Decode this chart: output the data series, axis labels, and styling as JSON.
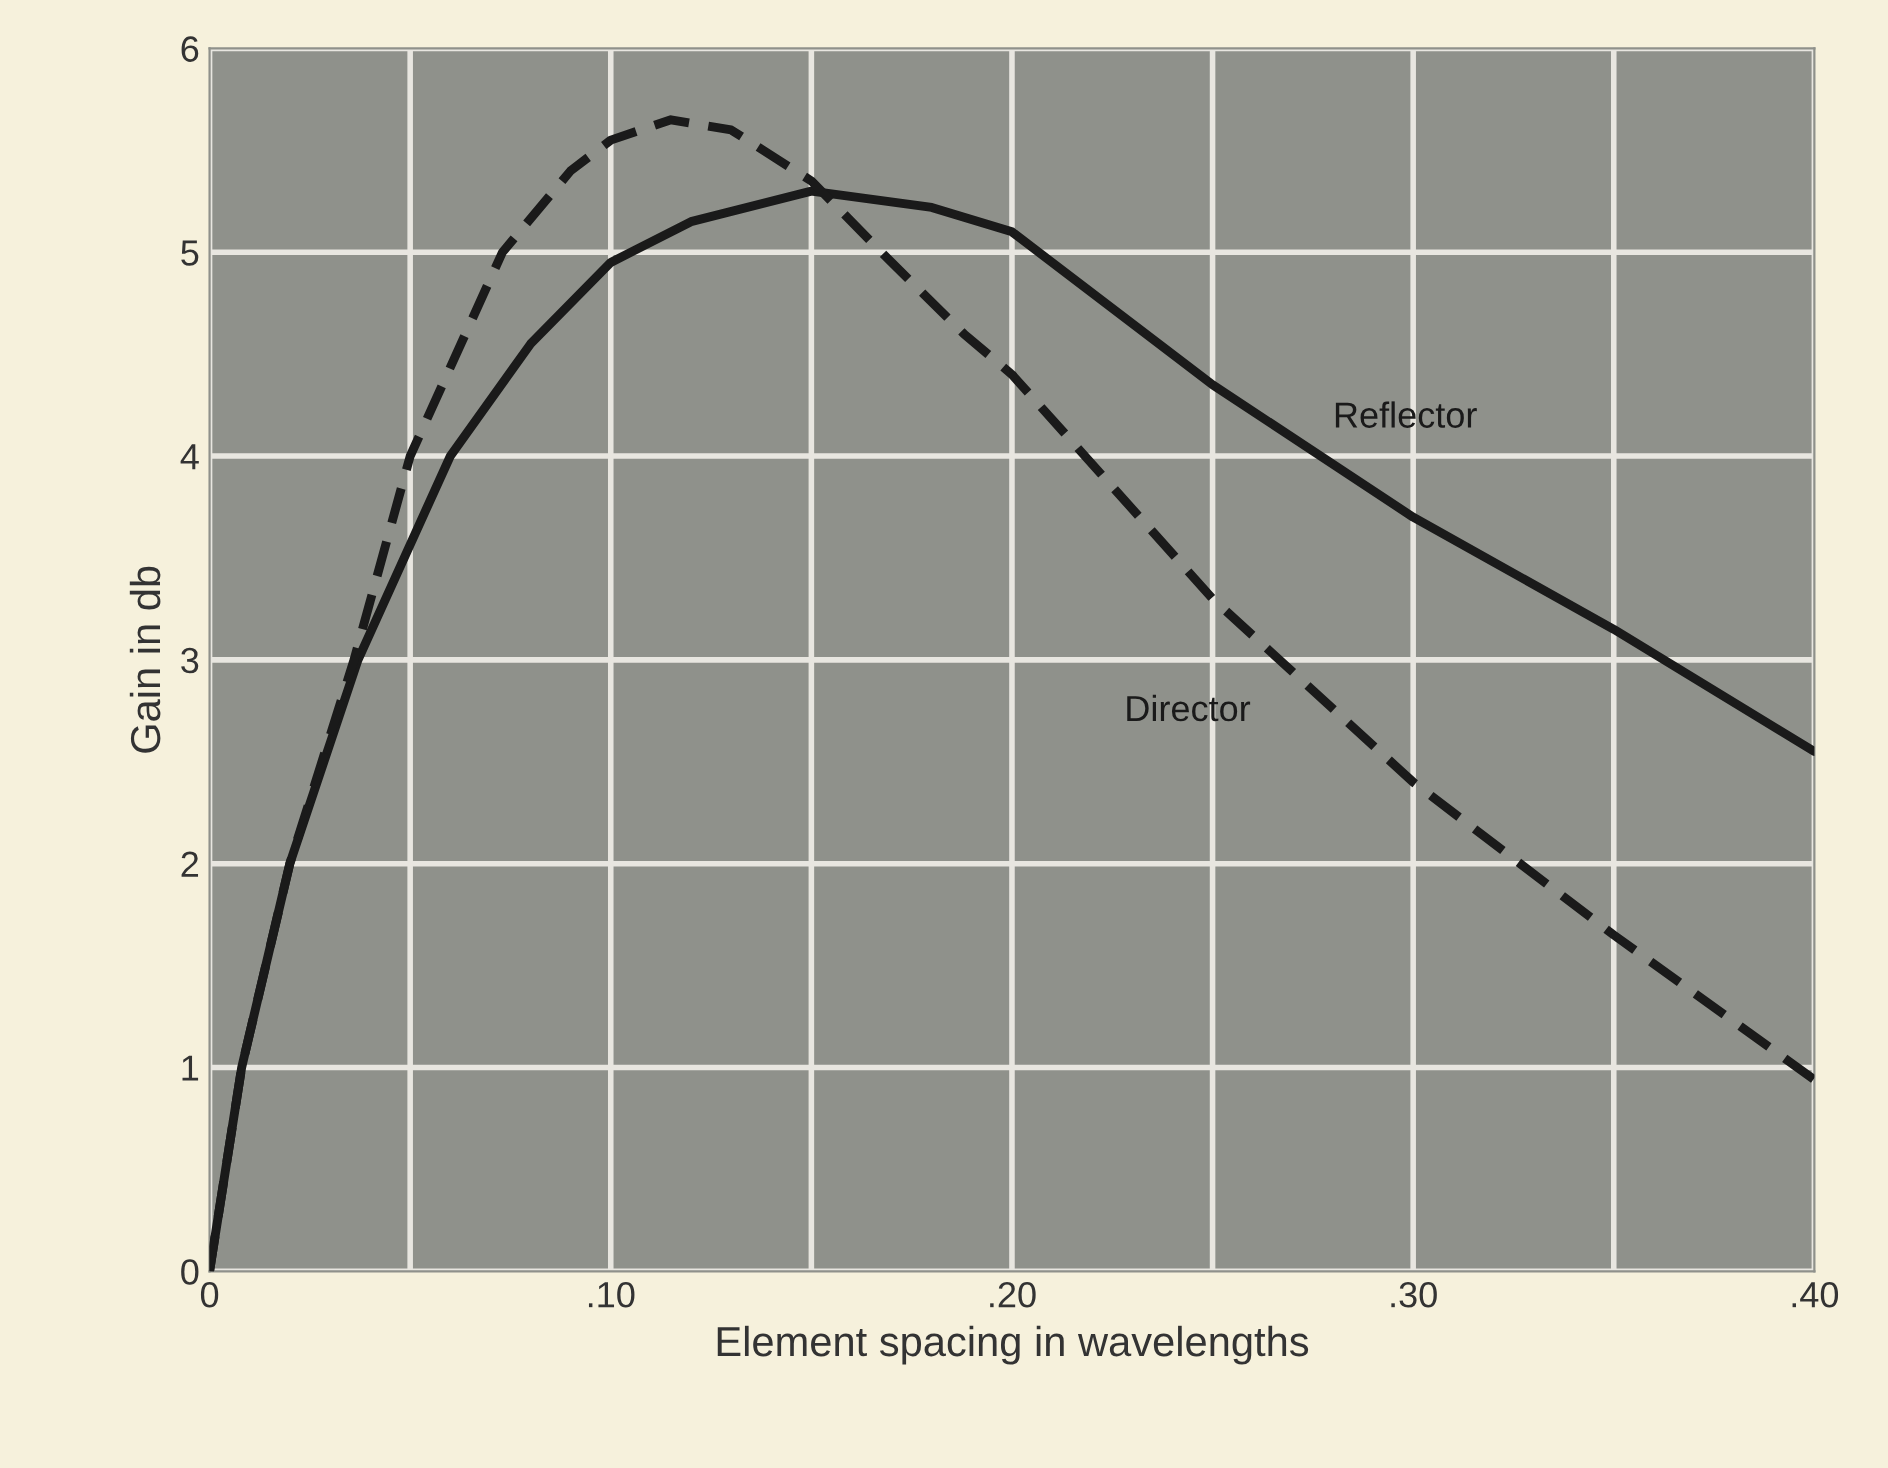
{
  "chart_data": {
    "type": "line",
    "xlabel": "Element spacing in wavelengths",
    "ylabel": "Gain in db",
    "xlim": [
      0,
      0.4
    ],
    "ylim": [
      0,
      6
    ],
    "xticks": [
      {
        "value": 0,
        "label": "0"
      },
      {
        "value": 0.05,
        "label": null
      },
      {
        "value": 0.1,
        "label": ".10"
      },
      {
        "value": 0.15,
        "label": null
      },
      {
        "value": 0.2,
        "label": ".20"
      },
      {
        "value": 0.25,
        "label": null
      },
      {
        "value": 0.3,
        "label": ".30"
      },
      {
        "value": 0.35,
        "label": null
      },
      {
        "value": 0.4,
        "label": ".40"
      }
    ],
    "yticks": [
      0,
      1,
      2,
      3,
      4,
      5,
      6
    ],
    "grid": true,
    "legend": false,
    "series": [
      {
        "name": "Reflector",
        "color": "#1a1a1a",
        "line_style": "solid",
        "x": [
          0,
          0.008,
          0.02,
          0.037,
          0.06,
          0.08,
          0.1,
          0.12,
          0.15,
          0.18,
          0.2,
          0.25,
          0.3,
          0.35,
          0.4
        ],
        "values": [
          0,
          1,
          2,
          3,
          4,
          4.55,
          4.95,
          5.15,
          5.3,
          5.22,
          5.1,
          4.35,
          3.7,
          3.15,
          2.55
        ]
      },
      {
        "name": "Director",
        "color": "#1a1a1a",
        "line_style": "dashed",
        "x": [
          0,
          0.008,
          0.02,
          0.036,
          0.05,
          0.073,
          0.09,
          0.1,
          0.115,
          0.13,
          0.15,
          0.17,
          0.188,
          0.2,
          0.25,
          0.3,
          0.35,
          0.4
        ],
        "values": [
          0,
          1,
          2,
          3,
          4,
          5,
          5.4,
          5.55,
          5.65,
          5.6,
          5.35,
          4.95,
          4.6,
          4.4,
          3.3,
          2.4,
          1.65,
          0.94
        ]
      }
    ]
  }
}
